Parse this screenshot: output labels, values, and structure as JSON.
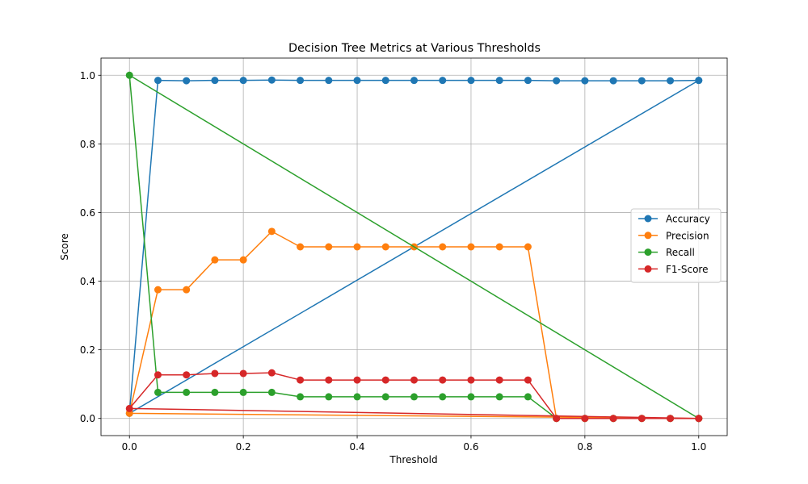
{
  "chart_data": {
    "type": "line",
    "title": "Decision Tree Metrics at Various Thresholds",
    "xlabel": "Threshold",
    "ylabel": "Score",
    "xlim": [
      -0.05,
      1.05
    ],
    "ylim": [
      -0.05,
      1.05
    ],
    "xticks": [
      "0.0",
      "0.2",
      "0.4",
      "0.6",
      "0.8",
      "1.0"
    ],
    "xtick_values": [
      0.0,
      0.2,
      0.4,
      0.6,
      0.8,
      1.0
    ],
    "yticks": [
      "0.0",
      "0.2",
      "0.4",
      "0.6",
      "0.8",
      "1.0"
    ],
    "ytick_values": [
      0.0,
      0.2,
      0.4,
      0.6,
      0.8,
      1.0
    ],
    "grid": true,
    "legend_position": "center-right",
    "x": [
      1.0,
      0.0,
      0.05,
      0.1,
      0.15,
      0.2,
      0.25,
      0.3,
      0.35,
      0.4,
      0.45,
      0.5,
      0.55,
      0.6,
      0.65,
      0.7,
      0.75,
      0.8,
      0.85,
      0.9,
      0.95,
      1.0
    ],
    "series": [
      {
        "name": "Accuracy",
        "color": "#1f77b4",
        "values": [
          0.985,
          0.015,
          0.985,
          0.984,
          0.985,
          0.985,
          0.986,
          0.985,
          0.985,
          0.985,
          0.985,
          0.985,
          0.985,
          0.985,
          0.985,
          0.985,
          0.984,
          0.984,
          0.984,
          0.984,
          0.984,
          0.985
        ]
      },
      {
        "name": "Precision",
        "color": "#ff7f0e",
        "values": [
          0.0,
          0.015,
          0.375,
          0.375,
          0.462,
          0.462,
          0.545,
          0.5,
          0.5,
          0.5,
          0.5,
          0.5,
          0.5,
          0.5,
          0.5,
          0.5,
          0.0,
          0.0,
          0.0,
          0.0,
          0.0,
          0.0
        ]
      },
      {
        "name": "Recall",
        "color": "#2ca02c",
        "values": [
          0.0,
          1.0,
          0.076,
          0.076,
          0.076,
          0.076,
          0.076,
          0.063,
          0.063,
          0.063,
          0.063,
          0.063,
          0.063,
          0.063,
          0.063,
          0.063,
          0.0,
          0.0,
          0.0,
          0.0,
          0.0,
          0.0
        ]
      },
      {
        "name": "F1-Score",
        "color": "#d62728",
        "values": [
          0.0,
          0.029,
          0.127,
          0.127,
          0.131,
          0.131,
          0.133,
          0.112,
          0.112,
          0.112,
          0.112,
          0.112,
          0.112,
          0.112,
          0.112,
          0.112,
          0.0,
          0.0,
          0.0,
          0.0,
          0.0,
          0.0
        ]
      }
    ]
  }
}
